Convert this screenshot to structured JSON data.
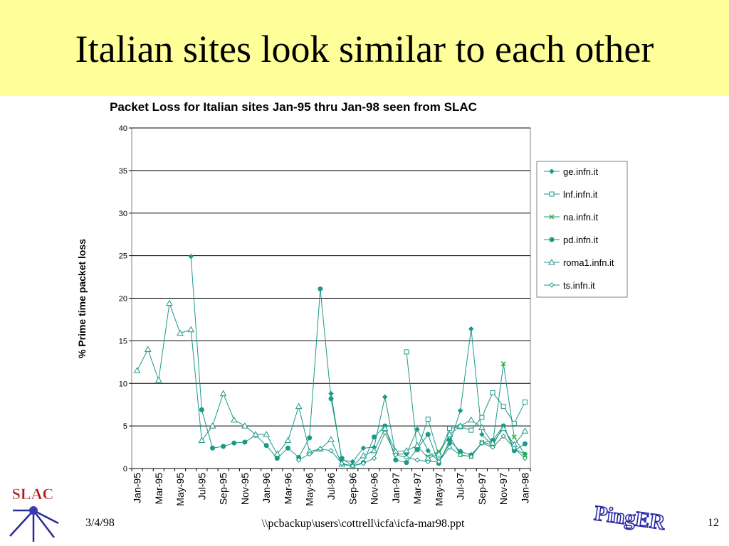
{
  "slide": {
    "title": "Italian sites look similar to each other",
    "date": "3/4/98",
    "path": "\\\\pcbackup\\users\\cottrell\\icfa\\icfa-mar98.ppt",
    "page": "12",
    "logo_left": "SLAC",
    "logo_right": "PingER"
  },
  "colors": {
    "title_band": "#ffff99",
    "series": "#1a9988"
  },
  "chart_data": {
    "type": "line",
    "title": "Packet Loss for Italian sites Jan-95 thru Jan-98 seen from SLAC",
    "xlabel": "",
    "ylabel": "% Prime time packet loss",
    "ylim": [
      0,
      40
    ],
    "yticks": [
      0,
      5,
      10,
      15,
      20,
      25,
      30,
      35,
      40
    ],
    "x": [
      "Jan-95",
      "Feb-95",
      "Mar-95",
      "Apr-95",
      "May-95",
      "Jun-95",
      "Jul-95",
      "Aug-95",
      "Sep-95",
      "Oct-95",
      "Nov-95",
      "Dec-95",
      "Jan-96",
      "Feb-96",
      "Mar-96",
      "Apr-96",
      "May-96",
      "Jun-96",
      "Jul-96",
      "Aug-96",
      "Sep-96",
      "Oct-96",
      "Nov-96",
      "Dec-96",
      "Jan-97",
      "Feb-97",
      "Mar-97",
      "Apr-97",
      "May-97",
      "Jun-97",
      "Jul-97",
      "Aug-97",
      "Sep-97",
      "Oct-97",
      "Nov-97",
      "Dec-97",
      "Jan-98"
    ],
    "xtick_labels": [
      "Jan-95",
      "Mar-95",
      "May-95",
      "Jul-95",
      "Sep-95",
      "Nov-95",
      "Jan-96",
      "Mar-96",
      "May-96",
      "Jul-96",
      "Sep-96",
      "Nov-96",
      "Jan-97",
      "Mar-97",
      "May-97",
      "Jul-97",
      "Sep-97",
      "Nov-97",
      "Jan-98"
    ],
    "grid": "horizontal",
    "legend": "right",
    "series": [
      {
        "name": "ge.infn.it",
        "marker": "diamond",
        "values": [
          null,
          null,
          null,
          null,
          null,
          24.9,
          6.9,
          null,
          null,
          null,
          null,
          null,
          null,
          null,
          null,
          null,
          null,
          null,
          8.8,
          1.0,
          0.8,
          2.4,
          2.5,
          8.4,
          1.7,
          1.7,
          4.6,
          2.1,
          0.8,
          2.9,
          6.8,
          16.4,
          4.0,
          2.7,
          5.0,
          2.3,
          1.7
        ]
      },
      {
        "name": "lnf.infn.it",
        "marker": "square",
        "values": [
          null,
          null,
          null,
          null,
          null,
          null,
          null,
          null,
          null,
          null,
          null,
          null,
          null,
          null,
          null,
          null,
          null,
          null,
          null,
          null,
          null,
          null,
          null,
          null,
          null,
          13.7,
          2.2,
          5.8,
          1.5,
          4.7,
          4.9,
          4.5,
          6.0,
          8.9,
          7.3,
          5.3,
          7.8
        ]
      },
      {
        "name": "na.infn.it",
        "marker": "x",
        "values": [
          null,
          null,
          null,
          null,
          null,
          null,
          null,
          null,
          null,
          null,
          null,
          null,
          null,
          null,
          null,
          null,
          null,
          null,
          null,
          null,
          null,
          null,
          null,
          null,
          null,
          null,
          null,
          1.4,
          2.0,
          3.8,
          1.6,
          1.4,
          3.1,
          2.8,
          12.3,
          3.7,
          1.6
        ]
      },
      {
        "name": "pd.infn.it",
        "marker": "circle",
        "values": [
          null,
          null,
          null,
          null,
          null,
          null,
          6.9,
          2.4,
          2.6,
          3.0,
          3.1,
          3.9,
          2.7,
          1.2,
          2.4,
          1.3,
          3.6,
          21.1,
          8.2,
          1.2,
          0.3,
          0.7,
          3.7,
          5.0,
          1.0,
          0.7,
          2.3,
          4.0,
          0.6,
          3.3,
          2.0,
          1.6,
          3.0,
          3.3,
          5.0,
          2.1,
          2.9
        ]
      },
      {
        "name": "roma1.infn.it",
        "marker": "triangle",
        "values": [
          11.5,
          14.0,
          10.4,
          19.4,
          15.9,
          16.3,
          3.3,
          5.0,
          8.8,
          5.7,
          5.0,
          4.0,
          4.0,
          1.7,
          3.3,
          7.3,
          2.0,
          2.3,
          3.4,
          0.5,
          0.3,
          1.5,
          2.1,
          4.7,
          2.0,
          2.1,
          2.7,
          1.2,
          1.7,
          4.0,
          5.0,
          5.7,
          4.8,
          3.0,
          4.7,
          2.8,
          4.4
        ]
      },
      {
        "name": "ts.infn.it",
        "marker": "diamond-open",
        "values": [
          null,
          null,
          null,
          null,
          null,
          null,
          null,
          null,
          null,
          null,
          null,
          null,
          null,
          null,
          null,
          1.0,
          1.7,
          2.3,
          2.1,
          0.6,
          0.3,
          0.6,
          1.2,
          4.2,
          1.6,
          1.3,
          1.0,
          0.8,
          0.8,
          2.5,
          1.6,
          1.4,
          3.0,
          2.5,
          3.8,
          2.4,
          1.2
        ]
      }
    ]
  }
}
